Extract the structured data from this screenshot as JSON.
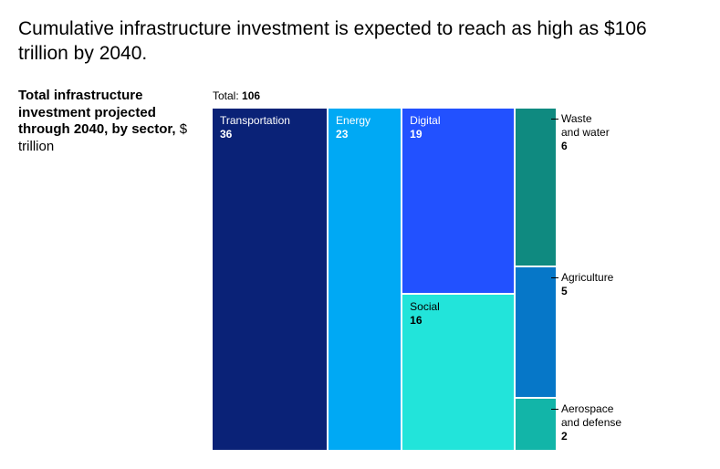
{
  "headline": "Cumulative infrastructure investment is expected to reach as high as $106 trillion by 2040.",
  "subtitle": {
    "bold": "Total infrastructure investment projected through 2040, by sector,",
    "unit": "$ trillion"
  },
  "total": {
    "label": "Total:",
    "value": "106"
  },
  "chart_data": {
    "type": "treemap",
    "title": "Cumulative infrastructure investment is expected to reach as high as $106 trillion by 2040.",
    "subtitle": "Total infrastructure investment projected through 2040, by sector, $ trillion",
    "total": 106,
    "unit": "$ trillion",
    "sectors": [
      {
        "name": "Transportation",
        "value": 36,
        "color": "#0a2277"
      },
      {
        "name": "Energy",
        "value": 23,
        "color": "#00a9f4"
      },
      {
        "name": "Digital",
        "value": 19,
        "color": "#2251ff"
      },
      {
        "name": "Social",
        "value": 16,
        "color": "#22e4da"
      },
      {
        "name": "Waste and water",
        "value": 6,
        "color": "#0f8a80"
      },
      {
        "name": "Agriculture",
        "value": 5,
        "color": "#0677c8"
      },
      {
        "name": "Aerospace and defense",
        "value": 2,
        "color": "#12b5a8"
      }
    ],
    "external_labels": {
      "Waste and water": [
        "Waste",
        "and water"
      ],
      "Agriculture": [
        "Agriculture"
      ],
      "Aerospace and defense": [
        "Aerospace",
        "and defense"
      ]
    }
  }
}
